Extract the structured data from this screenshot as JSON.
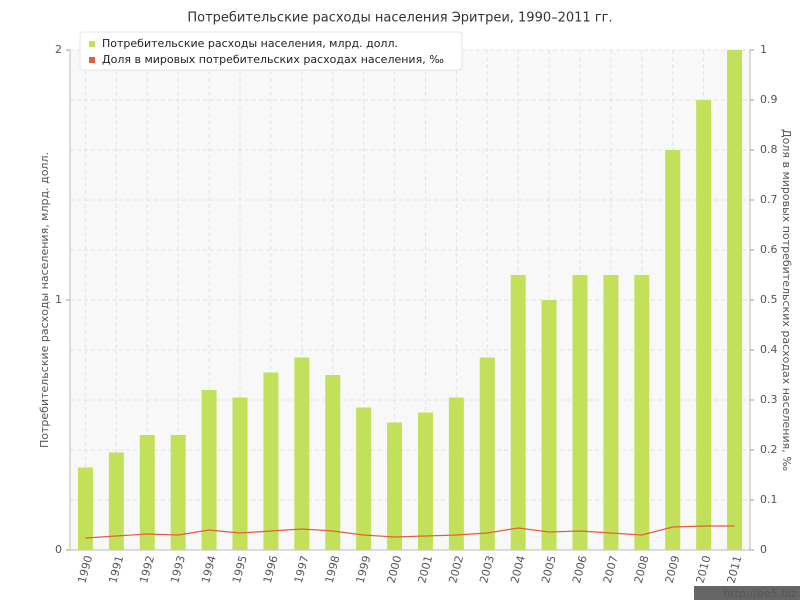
{
  "chart_data": {
    "type": "bar",
    "title": "Потребительские расходы населения Эритреи, 1990–2011 гг.",
    "y_label": "Потребительские расходы населения, млрд. долл.",
    "y2_label": "Доля в мировых потребительских расходах населения, ‰",
    "categories": [
      "1990",
      "1991",
      "1992",
      "1993",
      "1994",
      "1995",
      "1996",
      "1997",
      "1998",
      "1999",
      "2000",
      "2001",
      "2002",
      "2003",
      "2004",
      "2005",
      "2006",
      "2007",
      "2008",
      "2009",
      "2010",
      "2011"
    ],
    "series": [
      {
        "name": "Потребительские расходы населения, млрд. долл.",
        "color": "#c3e05b",
        "type": "bar",
        "values": [
          0.33,
          0.39,
          0.46,
          0.46,
          0.64,
          0.61,
          0.71,
          0.77,
          0.7,
          0.57,
          0.51,
          0.55,
          0.61,
          0.77,
          1.1,
          1.0,
          1.1,
          1.1,
          1.1,
          1.6,
          1.8,
          2.0
        ]
      },
      {
        "name": "Доля в мировых потребительских расходах населения, ‰",
        "color": "#e0603a",
        "type": "line",
        "axis": "y2",
        "values": [
          0.024,
          0.028,
          0.032,
          0.03,
          0.04,
          0.034,
          0.038,
          0.042,
          0.038,
          0.03,
          0.026,
          0.028,
          0.03,
          0.034,
          0.044,
          0.036,
          0.038,
          0.034,
          0.03,
          0.046,
          0.048,
          0.048
        ]
      }
    ],
    "ylim": [
      0,
      2
    ],
    "yticks": [
      0,
      1,
      2
    ],
    "y2lim": [
      0,
      1
    ],
    "y2ticks": [
      0,
      0.1,
      0.2,
      0.3,
      0.4,
      0.5,
      0.6,
      0.7,
      0.8,
      0.9,
      1
    ],
    "grid": true,
    "legend": "top-left",
    "watermark": "http://be5.biz"
  }
}
